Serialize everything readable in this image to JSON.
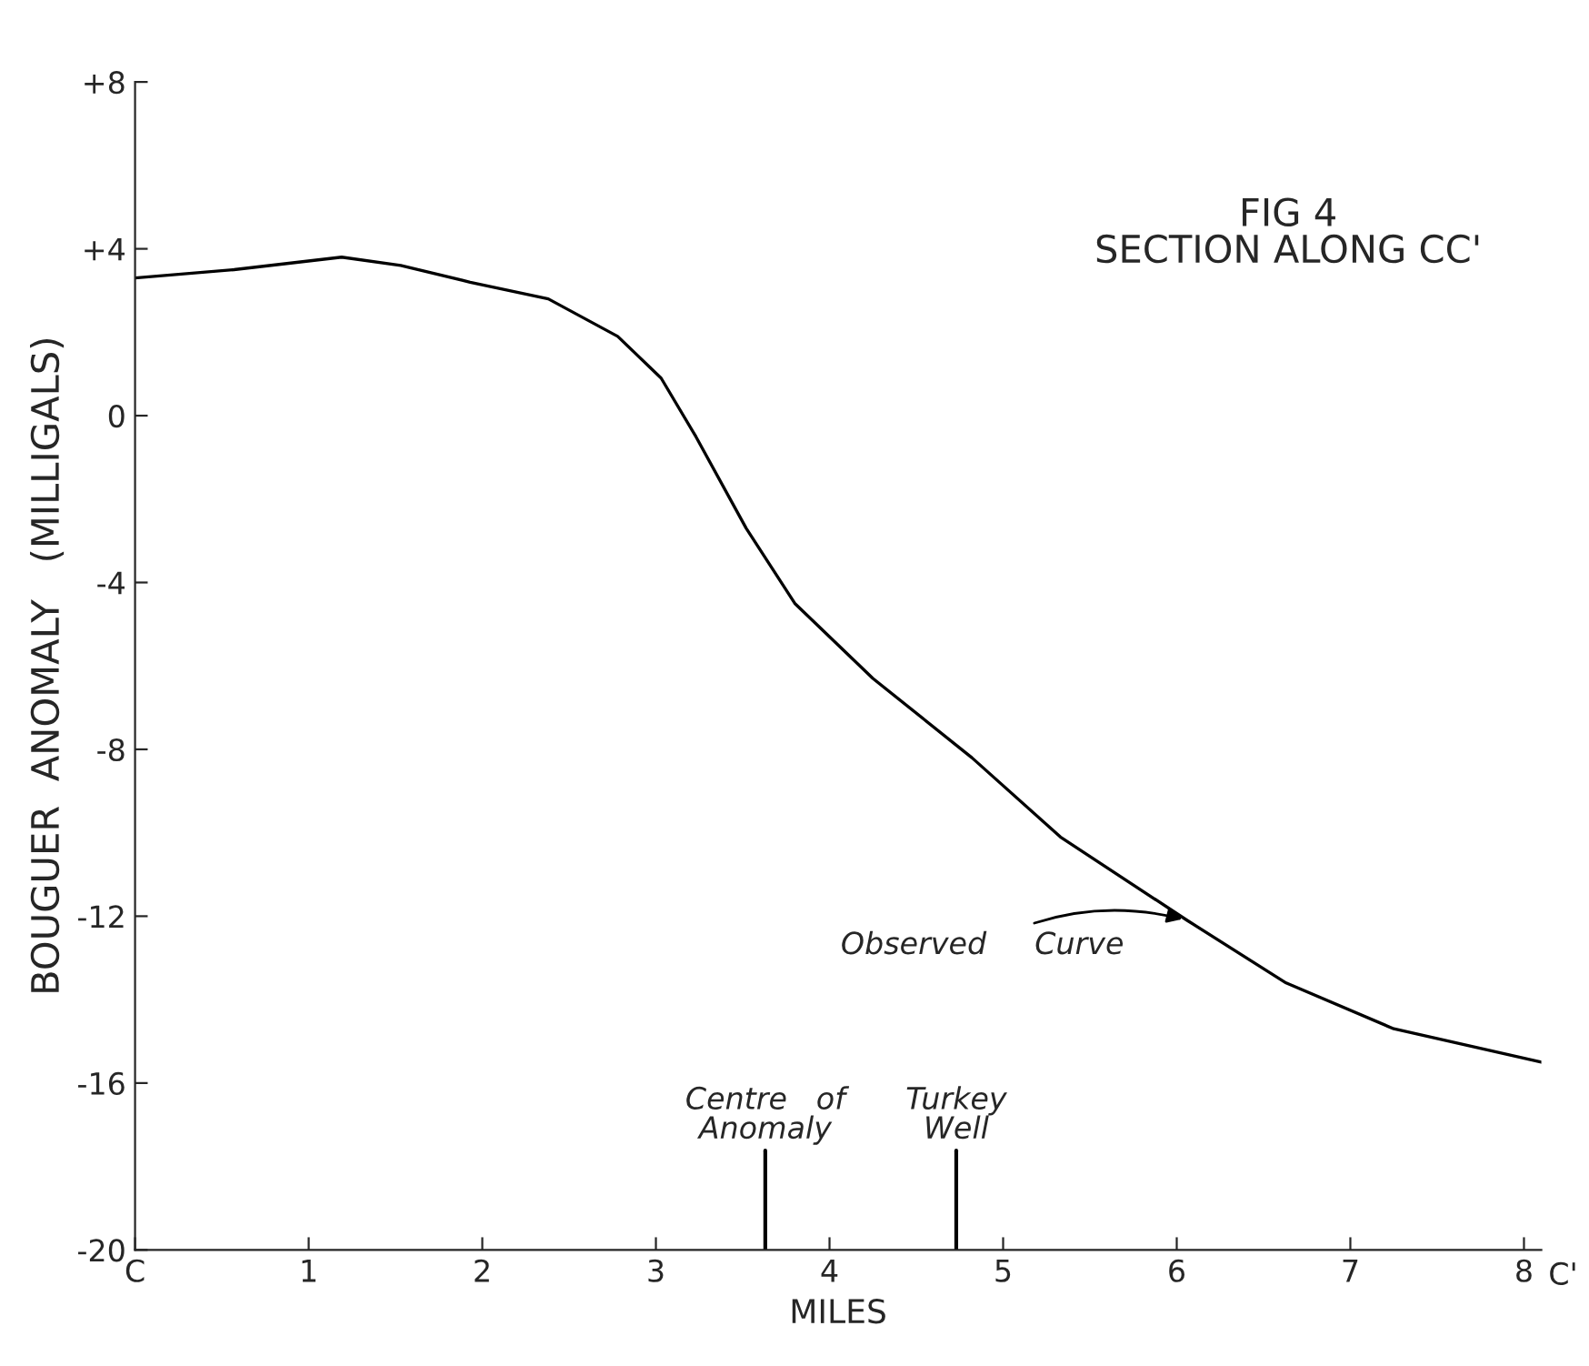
{
  "chart_data": {
    "type": "line",
    "xlabel": "MILES",
    "ylabel": "BOUGUER  ANOMALY   (MILLIGALS)",
    "x": [
      0,
      0.57,
      1.19,
      1.53,
      1.93,
      2.38,
      2.78,
      3.03,
      3.23,
      3.52,
      3.8,
      4.25,
      4.82,
      5.33,
      6.06,
      6.63,
      7.25,
      8.1
    ],
    "series": [
      {
        "color": "#000000",
        "values": [
          3.3,
          3.5,
          3.8,
          3.6,
          3.2,
          2.8,
          1.9,
          0.9,
          -0.5,
          -2.7,
          -4.5,
          -6.3,
          -8.2,
          -10.1,
          -12.1,
          -13.6,
          -14.7,
          -15.5
        ]
      }
    ],
    "xlim": [
      0,
      8.1
    ],
    "ylim": [
      -20,
      8
    ],
    "xticks": [
      {
        "value": 0,
        "label": "C"
      },
      1,
      2,
      3,
      4,
      5,
      6,
      7,
      8
    ],
    "yticks": [
      -20,
      -16,
      -12,
      -8,
      -4,
      0,
      {
        "value": 4,
        "label": "+4"
      },
      {
        "value": 8,
        "label": "+8"
      }
    ],
    "annotations": [
      "FIG 4\nSECTION ALONG CC'",
      "C'",
      {
        "text": "Observed     Curve",
        "x": 6.06,
        "y": -12.1
      }
    ],
    "ref_lines": [
      {
        "axis": "x",
        "value": 3.63,
        "label": "Centre   of\nAnomaly"
      },
      {
        "axis": "x",
        "value": 4.73,
        "label": "Turkey\nWell"
      }
    ],
    "grid": false,
    "legend": false,
    "marker": "none",
    "line_style": "solid"
  }
}
